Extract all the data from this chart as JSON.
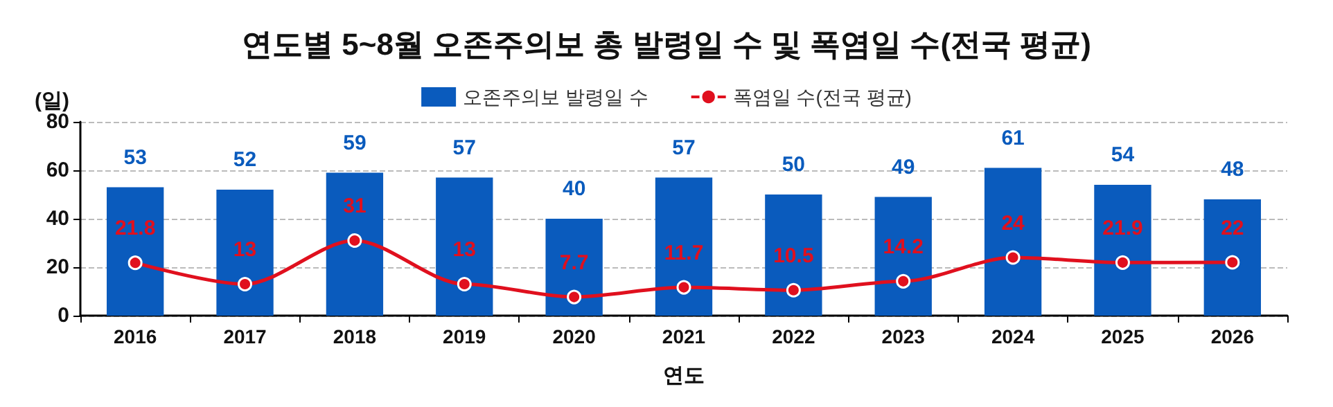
{
  "chart_data": {
    "type": "bar",
    "title": "연도별 5~8월 오존주의보 총 발령일 수 및 폭염일 수(전국 평균)",
    "xlabel": "연도",
    "ylabel": "(일)",
    "categories": [
      "2016",
      "2017",
      "2018",
      "2019",
      "2020",
      "2021",
      "2022",
      "2023",
      "2024",
      "2025",
      "2026"
    ],
    "series": [
      {
        "name": "오존주의보 발령일 수",
        "color": "#0a5bbd",
        "values": [
          53,
          52,
          59,
          57,
          40,
          57,
          50,
          49,
          61,
          54,
          48
        ]
      },
      {
        "name": "폭염일 수(전국 평균)",
        "type": "line",
        "color": "#e0101e",
        "values": [
          21.8,
          13,
          31,
          13,
          7.7,
          11.7,
          10.5,
          14.2,
          24,
          21.9,
          22
        ]
      }
    ],
    "ylim": [
      0,
      80
    ],
    "yticks": [
      0,
      20,
      40,
      60,
      80
    ],
    "grid": "y",
    "legend": "top",
    "data_labels": true,
    "marker": "circle",
    "line_style": "solid"
  }
}
